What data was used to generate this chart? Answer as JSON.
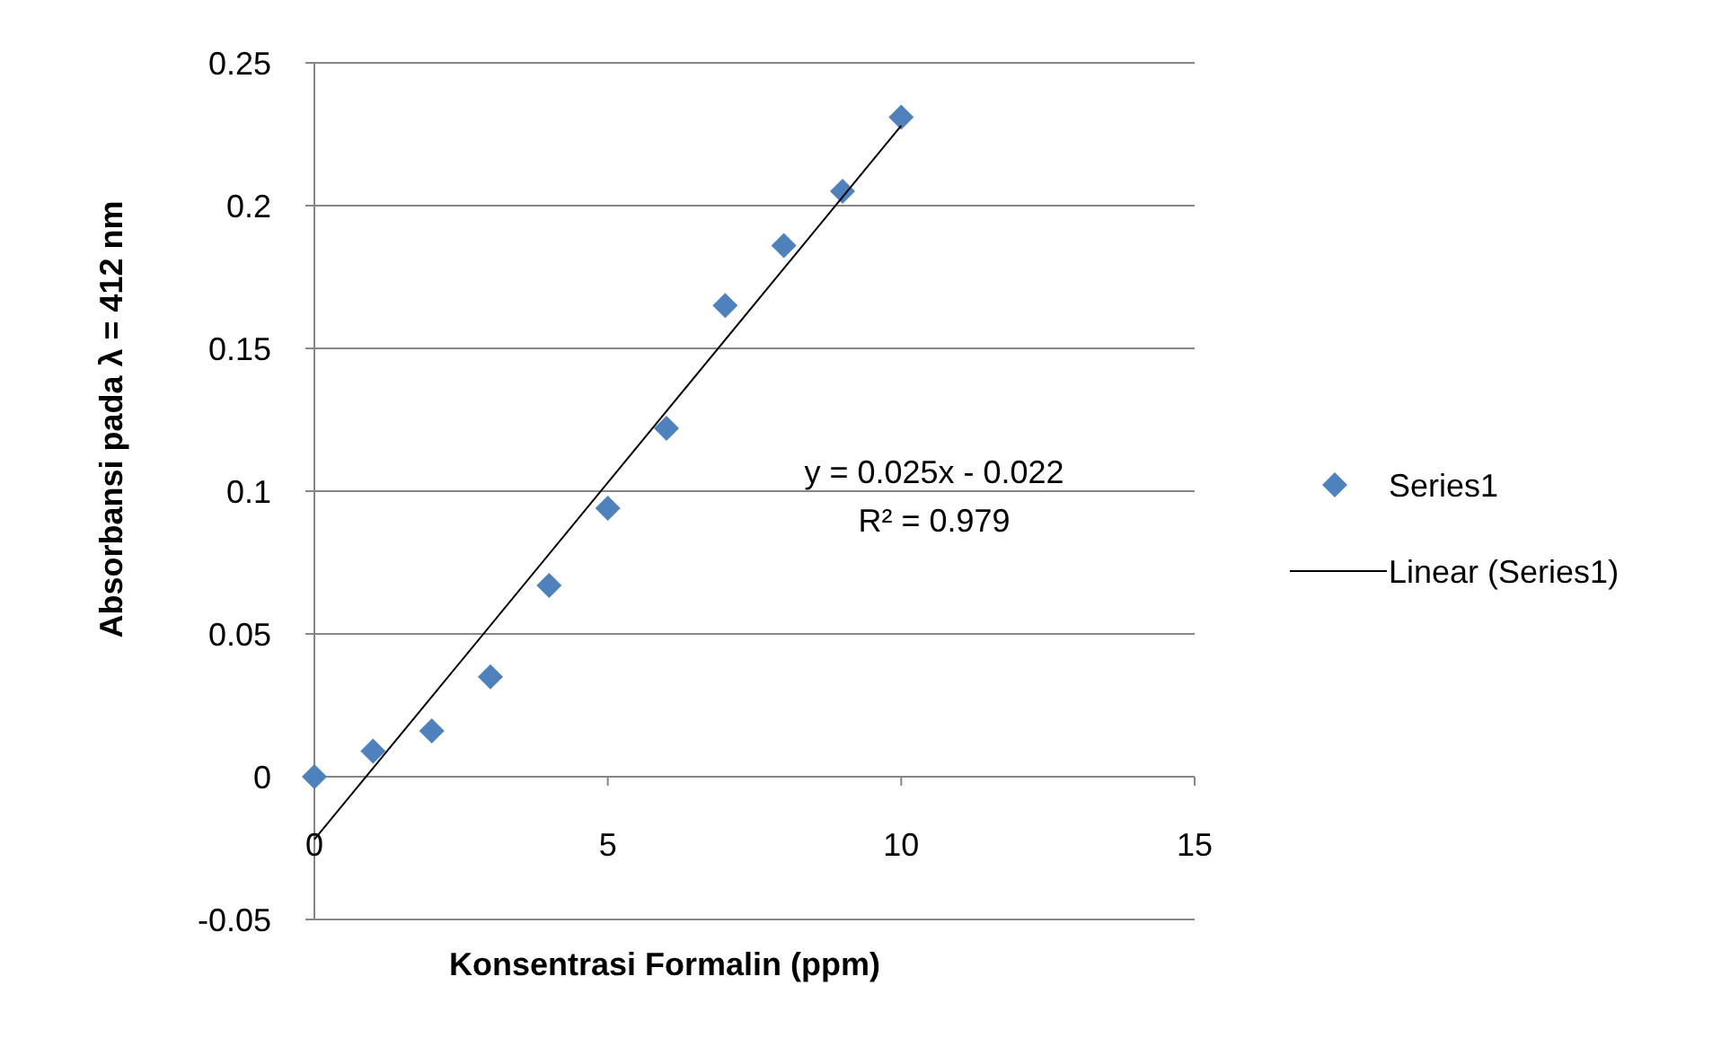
{
  "chart_data": {
    "type": "scatter",
    "xlabel": "Konsentrasi Formalin (ppm)",
    "ylabel": "Absorbansi pada λ = 412 nm",
    "x": [
      0,
      1,
      2,
      3,
      4,
      5,
      6,
      7,
      8,
      9,
      10
    ],
    "series": [
      {
        "name": "Series1",
        "color": "#4f81bd",
        "marker": "diamond",
        "values": [
          0,
          0.009,
          0.016,
          0.035,
          0.067,
          0.094,
          0.122,
          0.165,
          0.186,
          0.205,
          0.231
        ]
      },
      {
        "name": "Linear (Series1)",
        "type": "line",
        "color": "#000000",
        "x": [
          0,
          10
        ],
        "values": [
          -0.022,
          0.228
        ],
        "marker": "none",
        "line_style": "solid"
      }
    ],
    "annotations": [
      "y = 0.025x - 0.022",
      "R² = 0.979"
    ],
    "xlim": [
      0,
      15
    ],
    "xticks": [
      0,
      5,
      10,
      15
    ],
    "ylim": [
      -0.05,
      0.25
    ],
    "yticks": [
      -0.05,
      0,
      0.05,
      0.1,
      0.15,
      0.2,
      0.25
    ],
    "grid": "y",
    "legend": "right"
  }
}
